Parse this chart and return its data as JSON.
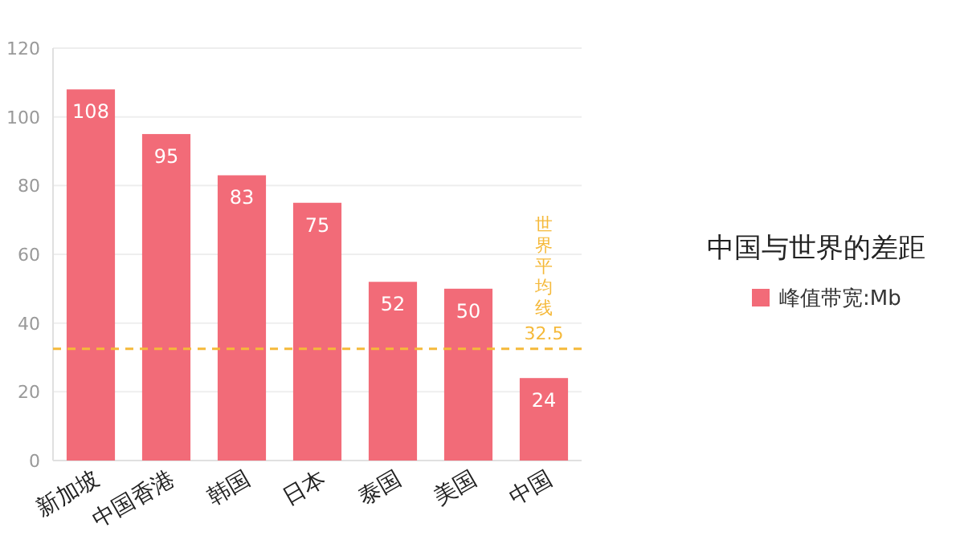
{
  "chart_data": {
    "type": "bar",
    "title": "中国与世界的差距",
    "categories": [
      "新加坡",
      "中国香港",
      "韩国",
      "日本",
      "泰国",
      "美国",
      "中国"
    ],
    "series": [
      {
        "name": "峰值带宽:Mb",
        "color": "#f26b78",
        "values": [
          108,
          95,
          83,
          75,
          52,
          50,
          24
        ]
      }
    ],
    "ylim": [
      0,
      120
    ],
    "yticks": [
      0,
      20,
      40,
      60,
      80,
      100,
      120
    ],
    "grid": "y",
    "ref_lines": [
      {
        "axis": "y",
        "value": 32.5,
        "label": "世界平均线",
        "color": "#f5b93a",
        "line_style": "dashed"
      }
    ],
    "annotations": [
      {
        "text": "32.5",
        "x": "中国",
        "y": 32.5
      }
    ],
    "data_labels": true,
    "legend": "right"
  }
}
